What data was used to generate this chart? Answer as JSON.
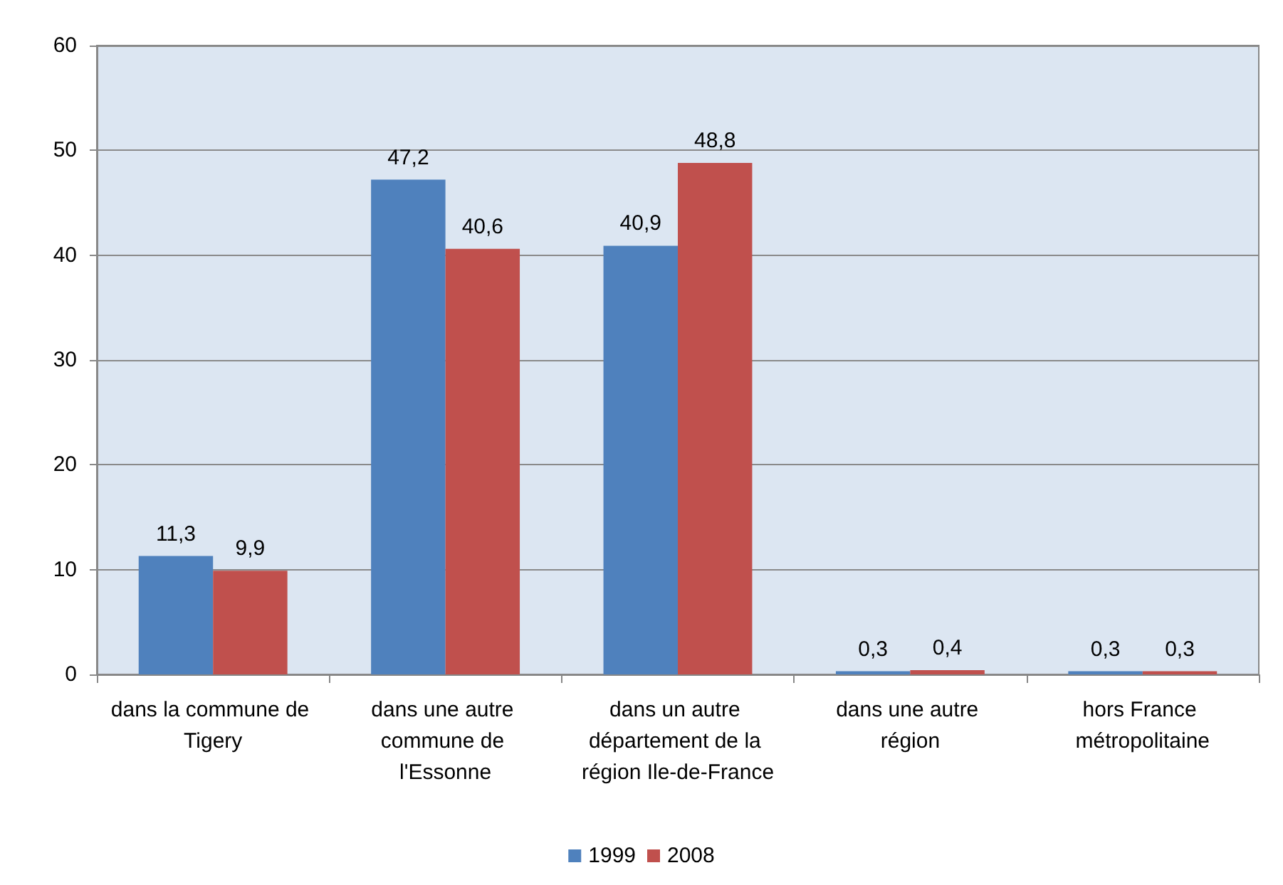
{
  "chart_data": {
    "type": "bar",
    "categories": [
      "dans la commune de Tigery",
      "dans une autre commune de l'Essonne",
      "dans un autre département de la région Ile-de-France",
      "dans une autre région",
      "hors France métropolitaine"
    ],
    "series": [
      {
        "name": "1999",
        "color": "#4f81bd",
        "values": [
          11.3,
          47.2,
          40.9,
          0.3,
          0.3
        ],
        "value_labels": [
          "11,3",
          "47,2",
          "40,9",
          "0,3",
          "0,3"
        ]
      },
      {
        "name": "2008",
        "color": "#c0504d",
        "values": [
          9.9,
          40.6,
          48.8,
          0.4,
          0.3
        ],
        "value_labels": [
          "9,9",
          "40,6",
          "48,8",
          "0,4",
          "0,3"
        ]
      }
    ],
    "ylim": [
      0,
      60
    ],
    "yticks": [
      0,
      10,
      20,
      30,
      40,
      50,
      60
    ],
    "grid": "y",
    "legend": "bottom"
  }
}
